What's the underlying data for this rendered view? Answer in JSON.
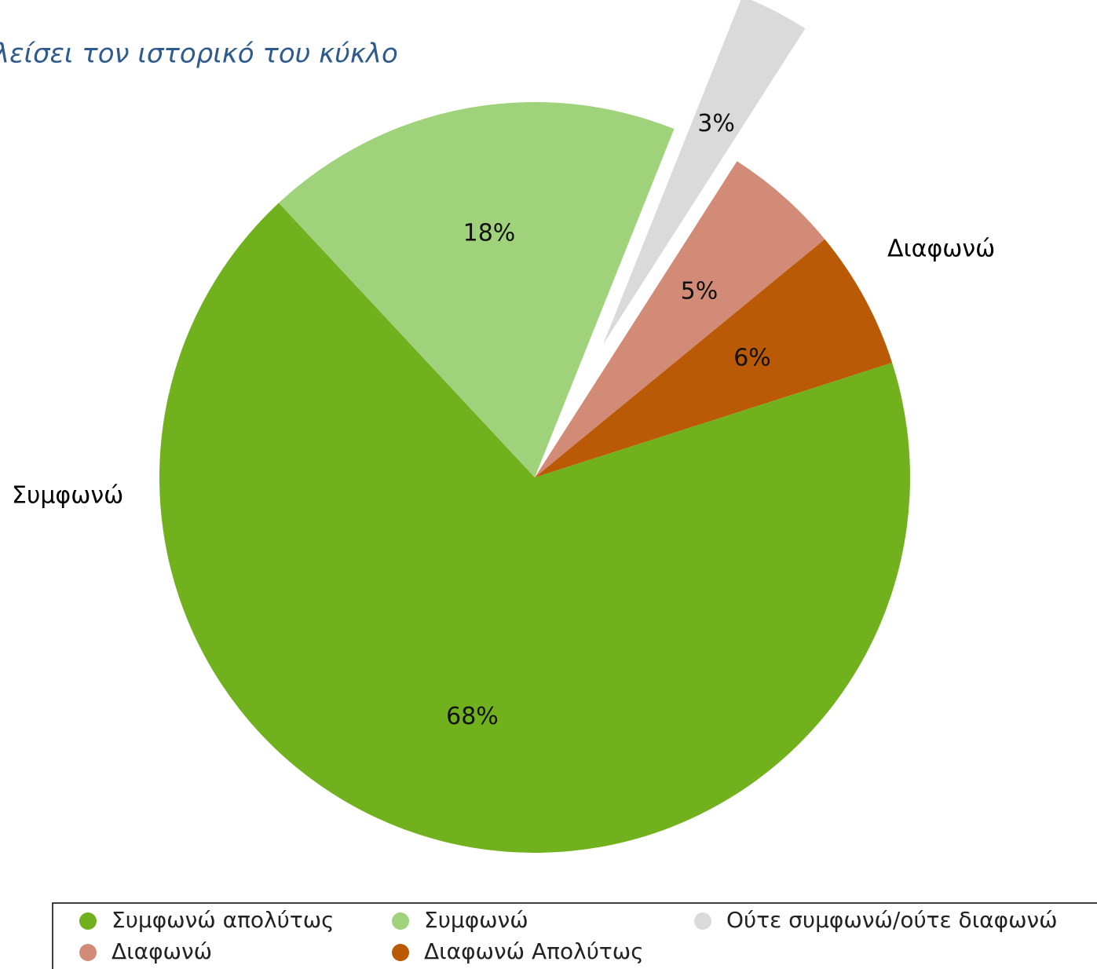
{
  "chart_data": {
    "type": "pie",
    "title": "λείσει τον ιστορικό του κύκλο",
    "categories": [
      "Συμφωνώ απολύτως",
      "Συμφωνώ",
      "Ούτε συμφωνώ/ούτε διαφωνώ",
      "Διαφωνώ",
      "Διαφωνώ Απολύτως"
    ],
    "values": [
      68,
      18,
      3,
      5,
      6
    ],
    "value_labels": [
      "68%",
      "18%",
      "3%",
      "5%",
      "6%"
    ],
    "colors": [
      "#72b11e",
      "#9fd27b",
      "#dadada",
      "#d28b76",
      "#bb5a06"
    ],
    "exploded": [
      false,
      false,
      true,
      false,
      false
    ],
    "annotations": [
      "Συμφωνώ",
      "Διαφωνώ"
    ],
    "legend": "bottom"
  }
}
